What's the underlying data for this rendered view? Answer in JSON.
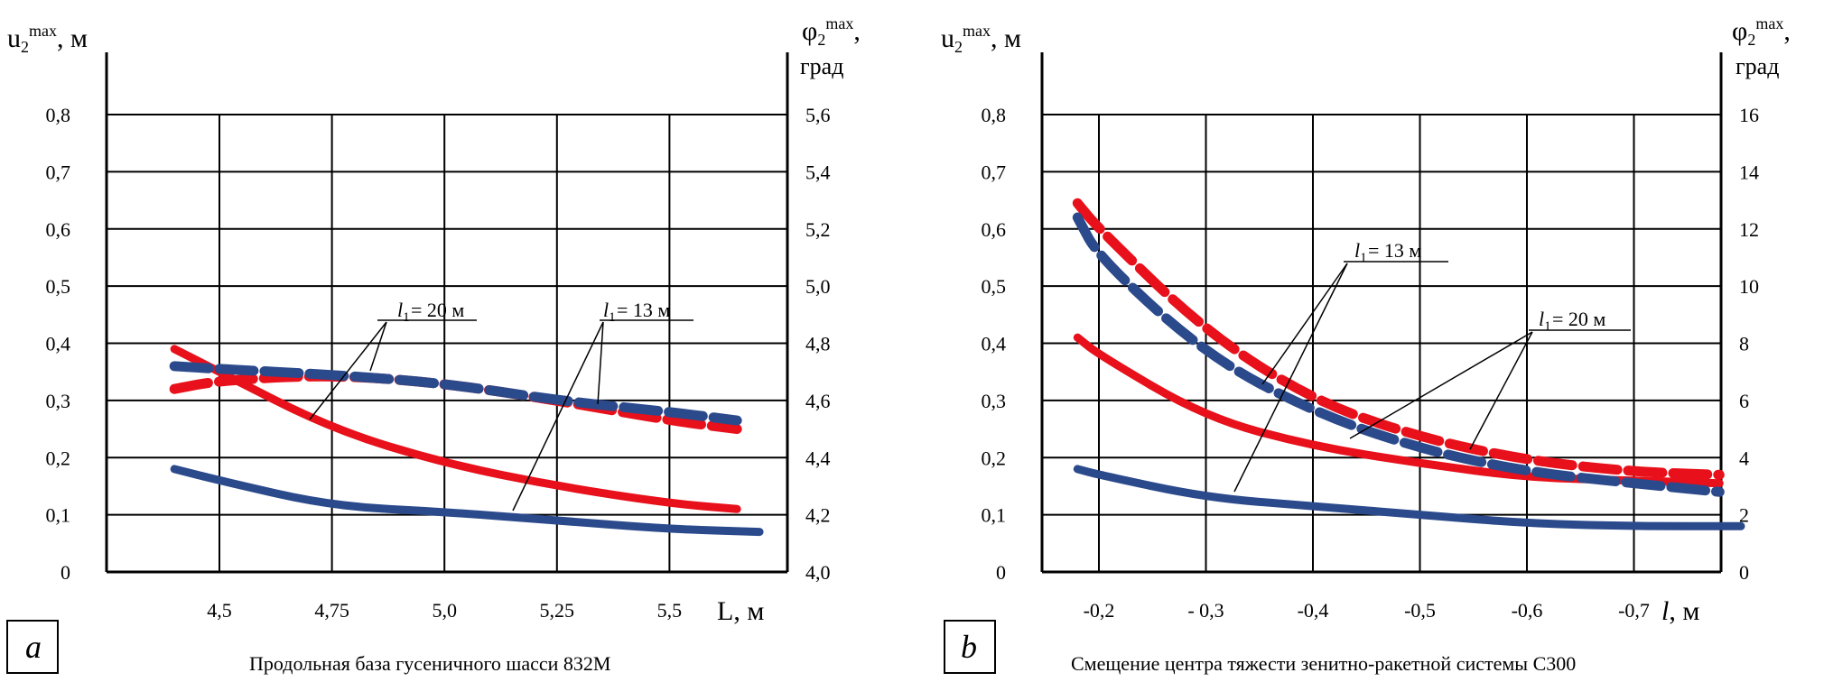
{
  "chart_data": [
    {
      "panel": "a",
      "type": "line",
      "caption": "Продольная база гусеничного шасси 832М",
      "xlabel": "L, м",
      "ylabel_left": "u2max, м",
      "ylabel_right": "φ2max, град",
      "x_ticks": [
        "4,5",
        "4,75",
        "5,0",
        "5,25",
        "5,5"
      ],
      "y_left_ticks": [
        "0",
        "0,1",
        "0,2",
        "0,3",
        "0,4",
        "0,5",
        "0,6",
        "0,7",
        "0,8"
      ],
      "y_right_ticks": [
        "4,0",
        "4,2",
        "4,4",
        "4,6",
        "4,8",
        "5,0",
        "5,2",
        "5,4",
        "5,6"
      ],
      "ylim_left": [
        0,
        0.8
      ],
      "ylim_right": [
        4.0,
        5.6
      ],
      "annotations": [
        {
          "label": "20 м"
        },
        {
          "label": "13 м"
        }
      ],
      "series": [
        {
          "color": "#e8101a",
          "dash": false,
          "axis": "left",
          "x": [
            4.4,
            4.5,
            4.75,
            5.0,
            5.25,
            5.5,
            5.65
          ],
          "y": [
            0.39,
            0.35,
            0.25,
            0.19,
            0.15,
            0.12,
            0.11
          ]
        },
        {
          "color": "#2b4a8c",
          "dash": false,
          "axis": "left",
          "x": [
            4.4,
            4.5,
            4.75,
            5.0,
            5.25,
            5.5,
            5.7
          ],
          "y": [
            0.18,
            0.16,
            0.115,
            0.105,
            0.09,
            0.075,
            0.07
          ]
        },
        {
          "color": "#e8101a",
          "dash": true,
          "axis": "right",
          "x": [
            4.4,
            4.5,
            4.75,
            5.0,
            5.25,
            5.5,
            5.65
          ],
          "y": [
            4.64,
            4.67,
            4.69,
            4.66,
            4.6,
            4.53,
            4.5
          ]
        },
        {
          "color": "#2b4a8c",
          "dash": true,
          "axis": "right",
          "x": [
            4.4,
            4.5,
            4.75,
            5.0,
            5.25,
            5.5,
            5.65
          ],
          "y": [
            4.72,
            4.71,
            4.69,
            4.66,
            4.6,
            4.56,
            4.53
          ]
        }
      ]
    },
    {
      "panel": "b",
      "type": "line",
      "caption": "Смещение центра тяжести зенитно-ракетной системы С300",
      "xlabel": "l, м",
      "ylabel_left": "u2max, м",
      "ylabel_right": "φ2max, град",
      "x_ticks": [
        "-0,2",
        "- 0,3",
        "-0,4",
        "-0,5",
        "-0,6",
        "-0,7"
      ],
      "y_left_ticks": [
        "0",
        "0,1",
        "0,2",
        "0,3",
        "0,4",
        "0,5",
        "0,6",
        "0,7",
        "0,8"
      ],
      "y_right_ticks": [
        "0",
        "2",
        "4",
        "6",
        "8",
        "10",
        "12",
        "14",
        "16"
      ],
      "ylim_left": [
        0,
        0.8
      ],
      "ylim_right": [
        0,
        16
      ],
      "annotations": [
        {
          "label": "13 м"
        },
        {
          "label": "20 м"
        }
      ],
      "series": [
        {
          "color": "#e8101a",
          "dash": false,
          "axis": "left",
          "x": [
            -0.18,
            -0.2,
            -0.3,
            -0.4,
            -0.5,
            -0.6,
            -0.7,
            -0.78
          ],
          "y": [
            0.41,
            0.38,
            0.27,
            0.22,
            0.19,
            0.165,
            0.16,
            0.155
          ]
        },
        {
          "color": "#2b4a8c",
          "dash": false,
          "axis": "left",
          "x": [
            -0.18,
            -0.2,
            -0.3,
            -0.4,
            -0.5,
            -0.6,
            -0.7,
            -0.8
          ],
          "y": [
            0.18,
            0.17,
            0.13,
            0.115,
            0.1,
            0.085,
            0.08,
            0.08
          ]
        },
        {
          "color": "#e8101a",
          "dash": true,
          "axis": "right",
          "x": [
            -0.18,
            -0.2,
            -0.3,
            -0.4,
            -0.5,
            -0.6,
            -0.7,
            -0.78
          ],
          "y": [
            12.9,
            12.0,
            8.4,
            6.0,
            4.7,
            3.9,
            3.5,
            3.4
          ]
        },
        {
          "color": "#2b4a8c",
          "dash": true,
          "axis": "right",
          "x": [
            -0.18,
            -0.2,
            -0.3,
            -0.4,
            -0.5,
            -0.6,
            -0.7,
            -0.78
          ],
          "y": [
            12.4,
            11.0,
            7.6,
            5.6,
            4.3,
            3.5,
            3.1,
            2.8
          ]
        }
      ]
    }
  ]
}
